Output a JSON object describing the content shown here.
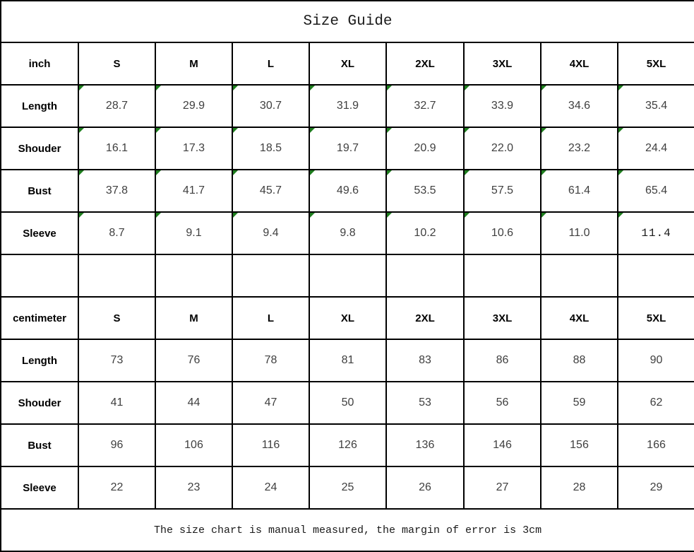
{
  "title": "Size Guide",
  "footer_note": "The size chart is manual measured, the margin of error is 3cm",
  "colors": {
    "border": "#000000",
    "marker_green": "#1e7e1e",
    "value_text": "#3f3f3f",
    "background": "#ffffff"
  },
  "chart_data": {
    "type": "table",
    "title": "Size Guide",
    "note": "The size chart is manual measured, the margin of error is 3cm",
    "sections": [
      {
        "unit": "inch",
        "columns": [
          "S",
          "M",
          "L",
          "XL",
          "2XL",
          "3XL",
          "4XL",
          "5XL"
        ],
        "has_corner_markers": true,
        "rows": [
          {
            "label": "Length",
            "values": [
              "28.7",
              "29.9",
              "30.7",
              "31.9",
              "32.7",
              "33.9",
              "34.6",
              "35.4"
            ]
          },
          {
            "label": "Shouder",
            "values": [
              "16.1",
              "17.3",
              "18.5",
              "19.7",
              "20.9",
              "22.0",
              "23.2",
              "24.4"
            ]
          },
          {
            "label": "Bust",
            "values": [
              "37.8",
              "41.7",
              "45.7",
              "49.6",
              "53.5",
              "57.5",
              "61.4",
              "65.4"
            ]
          },
          {
            "label": "Sleeve",
            "values": [
              "8.7",
              "9.1",
              "9.4",
              "9.8",
              "10.2",
              "10.6",
              "11.0",
              "11.4"
            ]
          }
        ]
      },
      {
        "unit": "centimeter",
        "columns": [
          "S",
          "M",
          "L",
          "XL",
          "2XL",
          "3XL",
          "4XL",
          "5XL"
        ],
        "has_corner_markers": false,
        "rows": [
          {
            "label": "Length",
            "values": [
              "73",
              "76",
              "78",
              "81",
              "83",
              "86",
              "88",
              "90"
            ]
          },
          {
            "label": "Shouder",
            "values": [
              "41",
              "44",
              "47",
              "50",
              "53",
              "56",
              "59",
              "62"
            ]
          },
          {
            "label": "Bust",
            "values": [
              "96",
              "106",
              "116",
              "126",
              "136",
              "146",
              "156",
              "166"
            ]
          },
          {
            "label": "Sleeve",
            "values": [
              "22",
              "23",
              "24",
              "25",
              "26",
              "27",
              "28",
              "29"
            ]
          }
        ]
      }
    ]
  }
}
